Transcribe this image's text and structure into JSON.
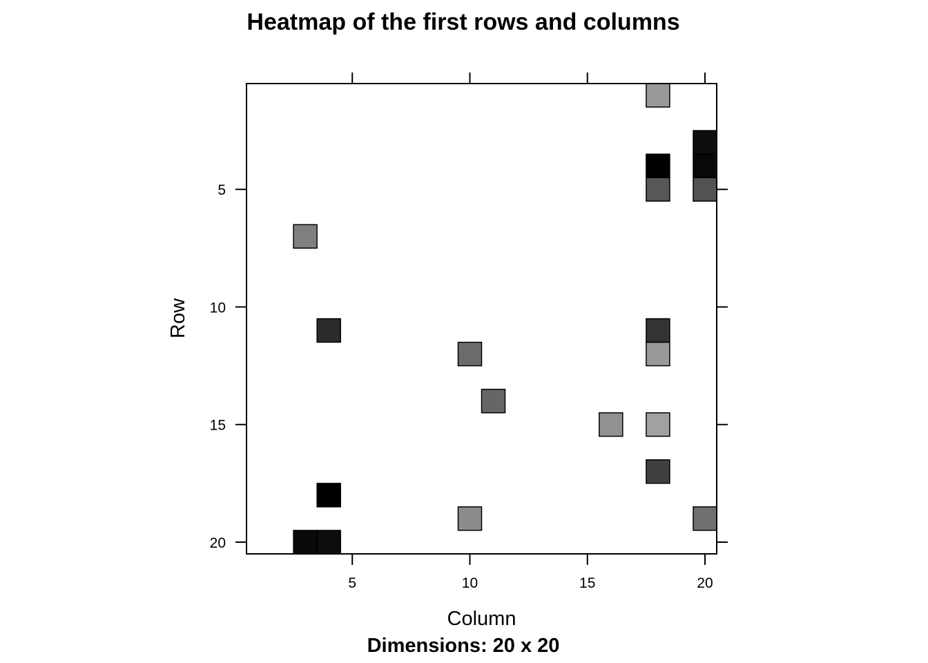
{
  "chart_data": {
    "type": "heatmap",
    "title": "Heatmap of the first rows and columns",
    "xlabel": "Column",
    "ylabel": "Row",
    "subtitle": "Dimensions: 20 x 20",
    "xlim": [
      0.5,
      20.5
    ],
    "ylim": [
      20.5,
      0.5
    ],
    "x_ticks": [
      5,
      10,
      15,
      20
    ],
    "y_ticks": [
      5,
      10,
      15,
      20
    ],
    "colors": {
      "scale": "grayscale",
      "background": "#ffffff",
      "border": "#000000"
    },
    "cells": [
      {
        "row": 1,
        "col": 18,
        "value": 0.6
      },
      {
        "row": 3,
        "col": 20,
        "value": 0.05
      },
      {
        "row": 4,
        "col": 18,
        "value": 0.0
      },
      {
        "row": 4,
        "col": 20,
        "value": 0.03
      },
      {
        "row": 5,
        "col": 18,
        "value": 0.34
      },
      {
        "row": 5,
        "col": 20,
        "value": 0.32
      },
      {
        "row": 7,
        "col": 3,
        "value": 0.5
      },
      {
        "row": 11,
        "col": 4,
        "value": 0.17
      },
      {
        "row": 11,
        "col": 18,
        "value": 0.2
      },
      {
        "row": 12,
        "col": 10,
        "value": 0.42
      },
      {
        "row": 12,
        "col": 18,
        "value": 0.6
      },
      {
        "row": 14,
        "col": 11,
        "value": 0.4
      },
      {
        "row": 15,
        "col": 16,
        "value": 0.57
      },
      {
        "row": 15,
        "col": 18,
        "value": 0.63
      },
      {
        "row": 17,
        "col": 18,
        "value": 0.25
      },
      {
        "row": 18,
        "col": 4,
        "value": 0.0
      },
      {
        "row": 19,
        "col": 10,
        "value": 0.55
      },
      {
        "row": 19,
        "col": 20,
        "value": 0.44
      },
      {
        "row": 20,
        "col": 3,
        "value": 0.04
      },
      {
        "row": 20,
        "col": 4,
        "value": 0.05
      }
    ]
  }
}
